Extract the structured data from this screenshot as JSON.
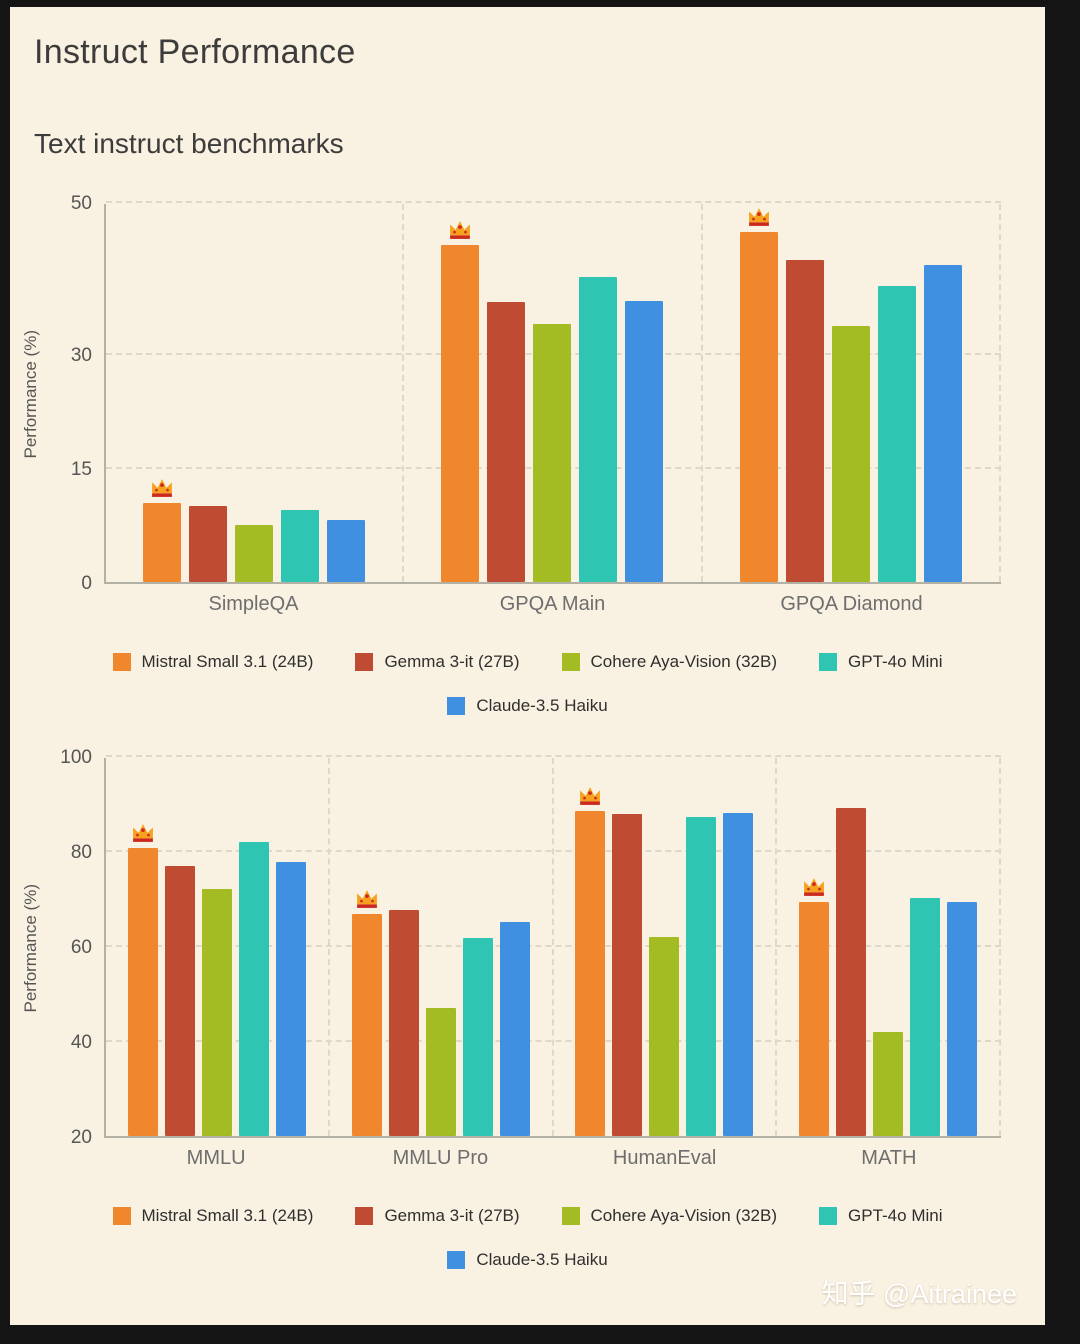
{
  "page": {
    "title": "Instruct Performance",
    "subtitle": "Text instruct benchmarks",
    "watermark": "知乎 @Aitrainee"
  },
  "colors": {
    "background": "#f9f1e1",
    "frame": "#141414",
    "crown_gold": "#f6a21e",
    "crown_red": "#cc2a1e",
    "series": [
      "#f1872d",
      "#bf4b33",
      "#a4bc24",
      "#2ec5b2",
      "#4090e2"
    ]
  },
  "legend": {
    "row1": [
      "Mistral Small 3.1 (24B)",
      "Gemma 3-it (27B)",
      "Cohere Aya-Vision (32B)",
      "GPT-4o Mini"
    ],
    "row2": [
      "Claude-3.5 Haiku"
    ]
  },
  "chart_data": [
    {
      "type": "bar",
      "title": "Text instruct benchmarks",
      "xlabel": "",
      "ylabel": "Performance (%)",
      "ylim": [
        0,
        50
      ],
      "yticks": [
        0,
        15,
        30,
        50
      ],
      "grid": "dashed",
      "legend_position": "bottom",
      "categories": [
        "SimpleQA",
        "GPQA Main",
        "GPQA Diamond"
      ],
      "series": [
        {
          "name": "Mistral Small 3.1 (24B)",
          "color": "#f1872d",
          "values": [
            10.4,
            44.4,
            46.0
          ],
          "crowned": [
            true,
            true,
            true
          ]
        },
        {
          "name": "Gemma 3-it (27B)",
          "color": "#bf4b33",
          "values": [
            10.0,
            36.8,
            42.4
          ],
          "crowned": [
            false,
            false,
            false
          ]
        },
        {
          "name": "Cohere Aya-Vision (32B)",
          "color": "#a4bc24",
          "values": [
            7.5,
            34.0,
            33.7
          ],
          "crowned": [
            false,
            false,
            false
          ]
        },
        {
          "name": "GPT-4o Mini",
          "color": "#2ec5b2",
          "values": [
            9.5,
            40.2,
            39.0
          ],
          "crowned": [
            false,
            false,
            false
          ]
        },
        {
          "name": "Claude-3.5 Haiku",
          "color": "#4090e2",
          "values": [
            8.1,
            37.0,
            41.7
          ],
          "crowned": [
            false,
            false,
            false
          ]
        }
      ]
    },
    {
      "type": "bar",
      "title": "",
      "xlabel": "",
      "ylabel": "Performance (%)",
      "ylim": [
        20,
        100
      ],
      "yticks": [
        20,
        40,
        60,
        80,
        100
      ],
      "grid": "dashed",
      "legend_position": "bottom",
      "categories": [
        "MMLU",
        "MMLU Pro",
        "HumanEval",
        "MATH"
      ],
      "series": [
        {
          "name": "Mistral Small 3.1 (24B)",
          "color": "#f1872d",
          "values": [
            80.6,
            66.8,
            88.4,
            69.3
          ],
          "crowned": [
            true,
            true,
            true,
            true
          ]
        },
        {
          "name": "Gemma 3-it (27B)",
          "color": "#bf4b33",
          "values": [
            76.9,
            67.5,
            87.8,
            89.0
          ],
          "crowned": [
            false,
            false,
            false,
            false
          ]
        },
        {
          "name": "Cohere Aya-Vision (32B)",
          "color": "#a4bc24",
          "values": [
            72.0,
            47.0,
            62.0,
            42.0
          ],
          "crowned": [
            false,
            false,
            false,
            false
          ]
        },
        {
          "name": "GPT-4o Mini",
          "color": "#2ec5b2",
          "values": [
            82.0,
            61.7,
            87.2,
            70.2
          ],
          "crowned": [
            false,
            false,
            false,
            false
          ]
        },
        {
          "name": "Claude-3.5 Haiku",
          "color": "#4090e2",
          "values": [
            77.6,
            65.0,
            88.1,
            69.2
          ],
          "crowned": [
            false,
            false,
            false,
            false
          ]
        }
      ]
    }
  ]
}
